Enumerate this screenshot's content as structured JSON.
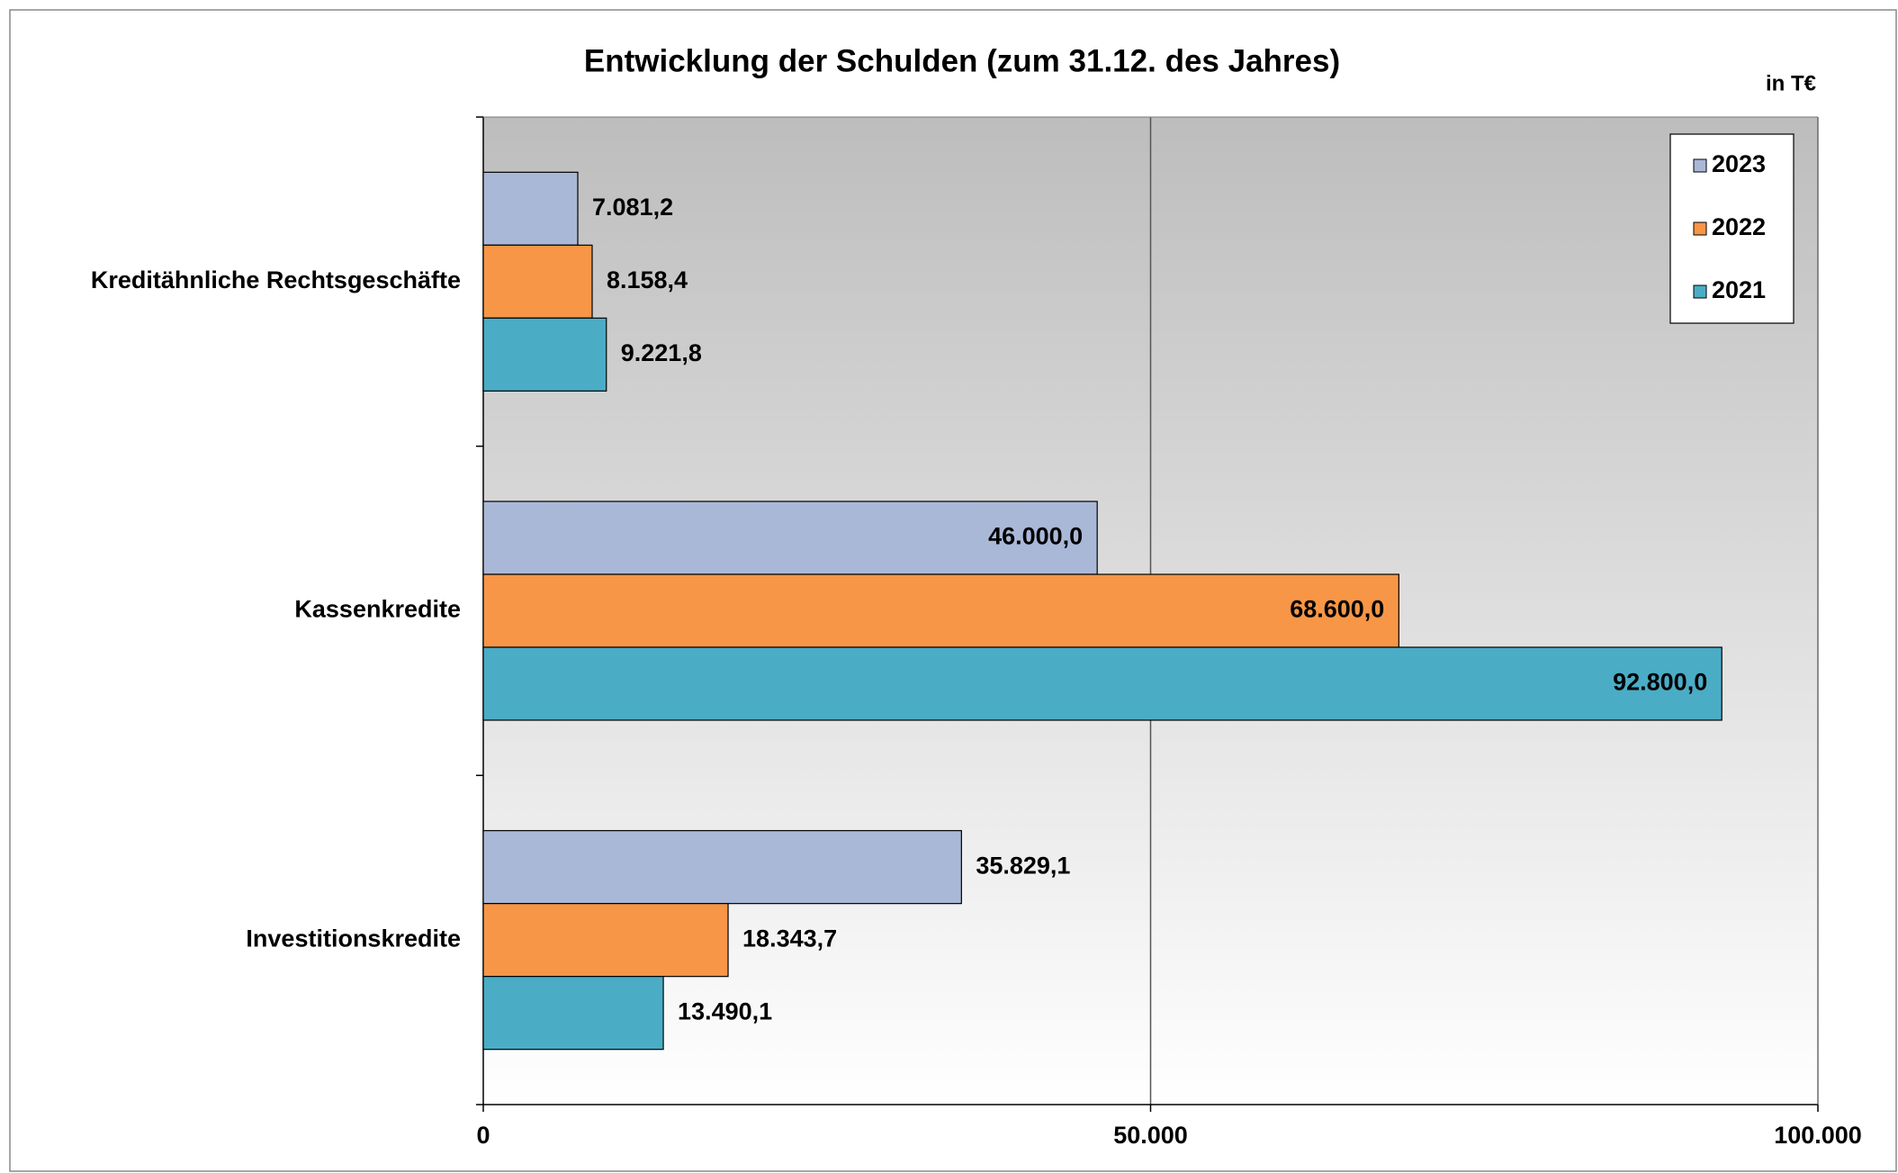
{
  "chart_data": {
    "type": "bar",
    "orientation": "horizontal",
    "title": "Entwicklung der Schulden (zum 31.12. des Jahres)",
    "unit_label": "in T€",
    "categories": [
      "Kreditähnliche Rechtsgeschäfte",
      "Kassenkredite",
      "Investitionskredite"
    ],
    "series": [
      {
        "name": "2023",
        "color": "#aab8d8",
        "values": [
          7081.2,
          46000.0,
          35829.1
        ],
        "value_labels": [
          "7.081,2",
          "46.000,0",
          "35.829,1"
        ]
      },
      {
        "name": "2022",
        "color": "#f79646",
        "values": [
          8158.4,
          68600.0,
          18343.7
        ],
        "value_labels": [
          "8.158,4",
          "68.600,0",
          "18.343,7"
        ]
      },
      {
        "name": "2021",
        "color": "#4bacc6",
        "values": [
          9221.8,
          92800.0,
          13490.1
        ],
        "value_labels": [
          "9.221,8",
          "92.800,0",
          "13.490,1"
        ]
      }
    ],
    "xlim": [
      0,
      100000
    ],
    "xticks": [
      0,
      {
        "value": 50000,
        "label": "50.000"
      },
      {
        "value": 100000,
        "label": "100.000"
      }
    ],
    "grid": true,
    "legend": "upper right"
  }
}
